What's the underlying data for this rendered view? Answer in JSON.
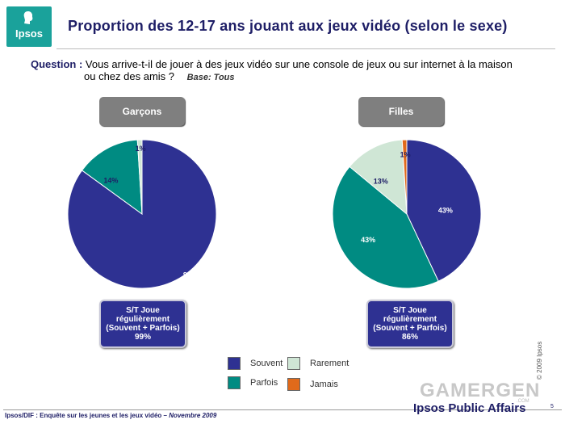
{
  "header": {
    "logo_text": "Ipsos",
    "title": "Proportion des 12-17 ans jouant aux jeux vidéo (selon le sexe)"
  },
  "question": {
    "label": "Question :",
    "line1": "Vous arrive-t-il de jouer à des jeux vidéo sur une console de jeux ou sur internet à la maison",
    "line2": "ou chez des amis ?",
    "base": "Base: Tous"
  },
  "colors": {
    "souvent": "#2e3192",
    "parfois": "#008b82",
    "rarement": "#cfe6d5",
    "jamais": "#e06a1b"
  },
  "chart_data": [
    {
      "type": "pie",
      "title": "Garçons",
      "categories": [
        "Souvent",
        "Parfois",
        "Rarement",
        "Jamais"
      ],
      "values": [
        85,
        14,
        1,
        0
      ],
      "labels": [
        "85%",
        "14%",
        "1%",
        ""
      ],
      "summary": [
        "S/T Joue",
        "régulièrement",
        "(Souvent + Parfois)",
        "99%"
      ]
    },
    {
      "type": "pie",
      "title": "Filles",
      "categories": [
        "Souvent",
        "Parfois",
        "Rarement",
        "Jamais"
      ],
      "values": [
        43,
        43,
        13,
        1
      ],
      "labels": [
        "43%",
        "43%",
        "13%",
        "1%"
      ],
      "summary": [
        "S/T Joue",
        "régulièrement",
        "(Souvent + Parfois)",
        "86%"
      ]
    }
  ],
  "legend": [
    {
      "label": "Souvent",
      "color": "#2e3192"
    },
    {
      "label": "Rarement",
      "color": "#cfe6d5"
    },
    {
      "label": "Parfois",
      "color": "#008b82"
    },
    {
      "label": "Jamais",
      "color": "#e06a1b"
    }
  ],
  "side": {
    "copyright": "© 2009 Ipsos"
  },
  "footer": {
    "source": "Ipsos/DIF : Enquête sur les jeunes et les jeux vidéo – ",
    "date": "Novembre 2009",
    "brand": "Ipsos Public Affairs",
    "page": "5"
  },
  "watermark": {
    "text": "GAMERGEN",
    "sub": ".COM"
  }
}
